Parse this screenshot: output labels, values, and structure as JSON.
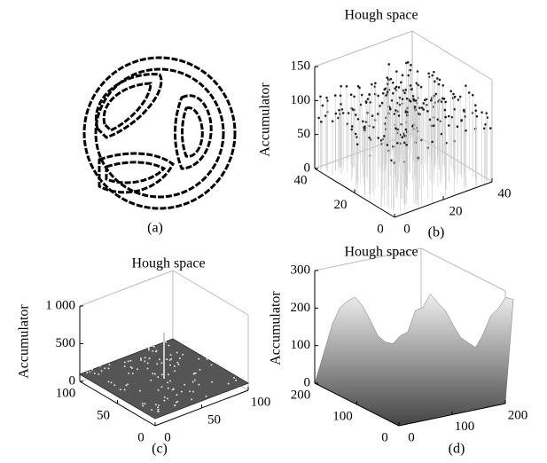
{
  "panels": [
    {
      "label": "(a)"
    },
    {
      "label": "(b)",
      "title": "Hough space",
      "zlabel": "Accumulator",
      "zlim": [
        0,
        150
      ],
      "zticks": [
        0,
        50,
        100,
        150
      ],
      "xlim": [
        0,
        40
      ],
      "xticks": [
        0,
        20,
        40
      ],
      "ylim": [
        0,
        40
      ],
      "yticks": [
        0,
        20,
        40
      ]
    },
    {
      "label": "(c)",
      "title": "Hough space",
      "zlabel": "Accumulator",
      "zlim": [
        0,
        1000
      ],
      "zticks": [
        0,
        500,
        {
          "value": 1000,
          "label": "1 000"
        }
      ],
      "xlim": [
        0,
        100
      ],
      "xticks": [
        0,
        50,
        100
      ],
      "ylim": [
        0,
        100
      ],
      "yticks": [
        0,
        50,
        100
      ]
    },
    {
      "label": "(d)",
      "title": "Hough space",
      "zlabel": "Accumulator",
      "zlim": [
        0,
        300
      ],
      "zticks": [
        0,
        100,
        200,
        300
      ],
      "xlim": [
        0,
        200
      ],
      "xticks": [
        0,
        100,
        200
      ],
      "ylim": [
        0,
        200
      ],
      "yticks": [
        0,
        100,
        200
      ]
    }
  ]
}
